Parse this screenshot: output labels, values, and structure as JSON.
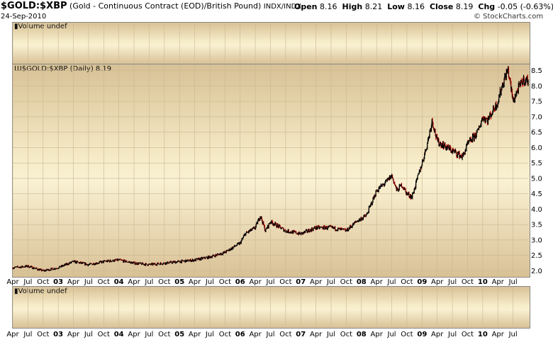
{
  "header": {
    "symbol": "$GOLD:$XBP",
    "description": "(Gold - Continuous Contract (EOD)/British Pound)",
    "exchange": "INDX/INDX",
    "date": "24-Sep-2010",
    "open_label": "Open",
    "open": "8.16",
    "high_label": "High",
    "high": "8.21",
    "low_label": "Low",
    "low": "8.16",
    "close_label": "Close",
    "close": "8.19",
    "chg_label": "Chg",
    "chg": "-0.05 (-0.63%)",
    "watermark": "© StockCharts.com"
  },
  "panels": {
    "top_volume_label": "Volume undef",
    "main_label": "$GOLD:$XBP (Daily) 8.19",
    "bottom_volume_label": "Volume undef"
  },
  "colors": {
    "up": "#000000",
    "down": "#cc0000",
    "accent": "#cc0000"
  },
  "chart_data": {
    "type": "line",
    "title": "$GOLD:$XBP (Daily) 8.19",
    "ylim": [
      1.85,
      8.7
    ],
    "yticks": [
      "2.0",
      "2.5",
      "3.0",
      "3.5",
      "4.0",
      "4.5",
      "5.0",
      "5.5",
      "6.0",
      "6.5",
      "7.0",
      "7.5",
      "8.0",
      "8.5"
    ],
    "x_ticks": [
      "Apr",
      "Jul",
      "Oct",
      "03",
      "Apr",
      "Jul",
      "Oct",
      "04",
      "Apr",
      "Jul",
      "Oct",
      "05",
      "Apr",
      "Jul",
      "Oct",
      "06",
      "Apr",
      "Jul",
      "Oct",
      "07",
      "Apr",
      "Jul",
      "Oct",
      "08",
      "Apr",
      "Jul",
      "Oct",
      "09",
      "Apr",
      "Jul",
      "Oct",
      "10",
      "Apr",
      "Jul"
    ],
    "grid": true,
    "series": [
      {
        "x": [
          "2002-04",
          "2002-07",
          "2002-10",
          "2003-01",
          "2003-04",
          "2003-07",
          "2003-10",
          "2004-01",
          "2004-04",
          "2004-07",
          "2004-10",
          "2005-01",
          "2005-04",
          "2005-07",
          "2005-10",
          "2006-01",
          "2006-02",
          "2006-04",
          "2006-05",
          "2006-06",
          "2006-07",
          "2006-10",
          "2007-01",
          "2007-04",
          "2007-07",
          "2007-10",
          "2007-12",
          "2008-02",
          "2008-03",
          "2008-04",
          "2008-06",
          "2008-07",
          "2008-08",
          "2008-09",
          "2008-10",
          "2008-11",
          "2009-01",
          "2009-02",
          "2009-03",
          "2009-04",
          "2009-06",
          "2009-09",
          "2009-10",
          "2009-12",
          "2010-01",
          "2010-02",
          "2010-04",
          "2010-05",
          "2010-06",
          "2010-07",
          "2010-08",
          "2010-09"
        ],
        "values": [
          2.1,
          2.15,
          2.0,
          2.1,
          2.3,
          2.2,
          2.3,
          2.35,
          2.25,
          2.2,
          2.25,
          2.3,
          2.35,
          2.45,
          2.6,
          2.9,
          3.2,
          3.4,
          3.8,
          3.3,
          3.6,
          3.3,
          3.2,
          3.4,
          3.4,
          3.3,
          3.6,
          3.8,
          4.2,
          4.6,
          4.9,
          5.1,
          4.6,
          4.8,
          4.5,
          4.4,
          5.5,
          6.1,
          6.9,
          6.2,
          6.0,
          5.7,
          6.1,
          6.5,
          7.0,
          6.9,
          7.5,
          8.1,
          8.55,
          7.5,
          7.9,
          8.19
        ]
      }
    ]
  }
}
